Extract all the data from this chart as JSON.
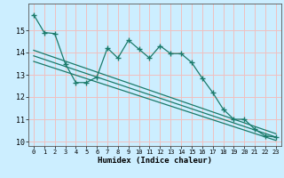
{
  "xlabel": "Humidex (Indice chaleur)",
  "background_color": "#cceeff",
  "grid_color": "#f0c0c0",
  "line_color": "#1a7a6a",
  "xlim": [
    -0.5,
    23.5
  ],
  "ylim": [
    9.8,
    16.2
  ],
  "yticks": [
    10,
    11,
    12,
    13,
    14,
    15
  ],
  "xticks": [
    0,
    1,
    2,
    3,
    4,
    5,
    6,
    7,
    8,
    9,
    10,
    11,
    12,
    13,
    14,
    15,
    16,
    17,
    18,
    19,
    20,
    21,
    22,
    23
  ],
  "line1_x": [
    0,
    1,
    2,
    3,
    4,
    5,
    6,
    7,
    8,
    9,
    10,
    11,
    12,
    13,
    14,
    15,
    16,
    17,
    18,
    19,
    20,
    21,
    22,
    23
  ],
  "line1_y": [
    15.7,
    14.9,
    14.85,
    13.5,
    12.65,
    12.65,
    12.9,
    14.2,
    13.75,
    14.55,
    14.15,
    13.75,
    14.3,
    13.95,
    13.95,
    13.55,
    12.85,
    12.2,
    11.45,
    11.0,
    11.0,
    10.55,
    10.25,
    10.2
  ],
  "line2_x": [
    0,
    23
  ],
  "line2_y": [
    14.1,
    10.35
  ],
  "line3_x": [
    0,
    23
  ],
  "line3_y": [
    13.85,
    10.2
  ],
  "line4_x": [
    0,
    23
  ],
  "line4_y": [
    13.6,
    10.05
  ]
}
